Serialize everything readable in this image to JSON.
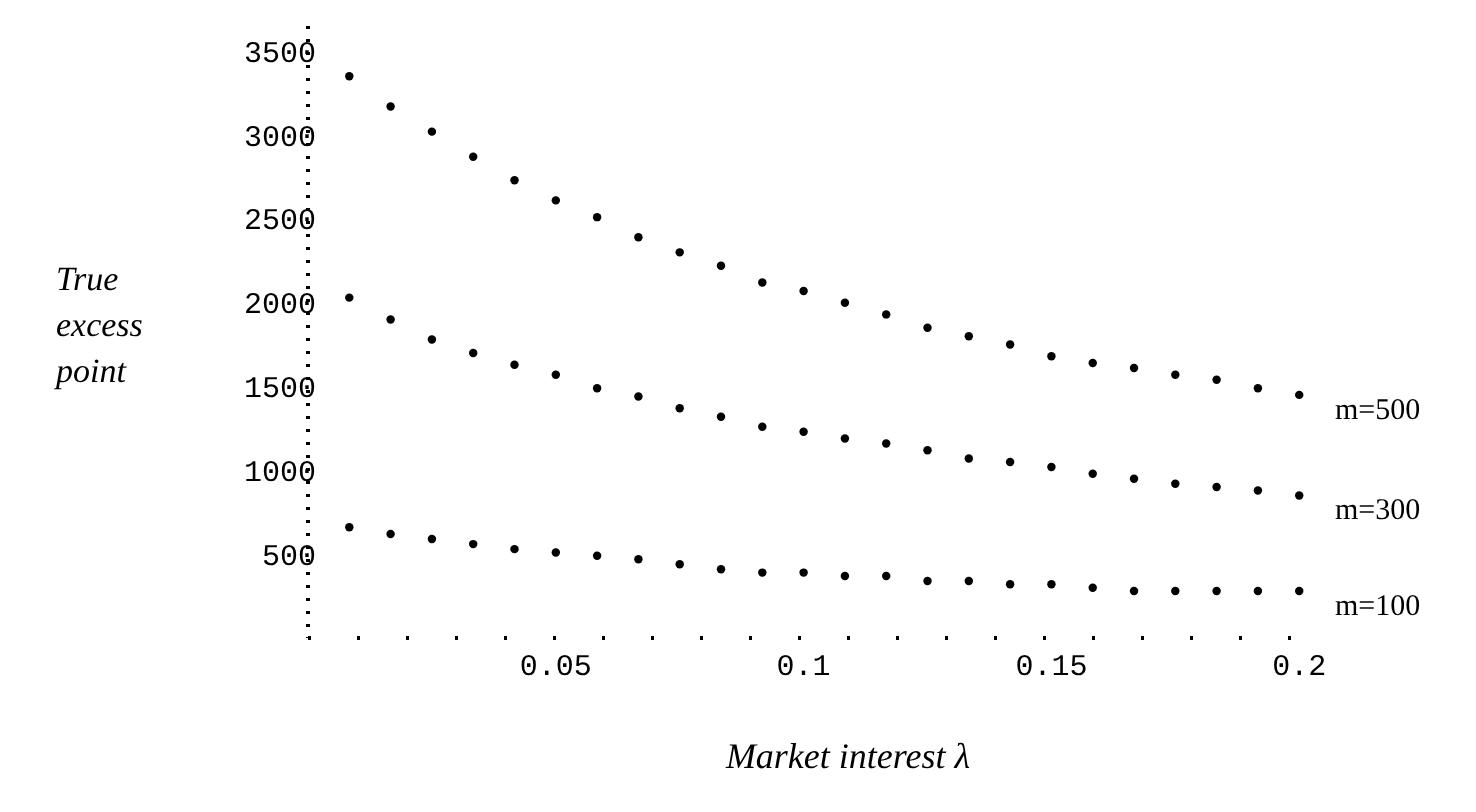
{
  "chart_data": {
    "type": "scatter",
    "xlabel": "Market interest λ",
    "ylabel": "True excess point",
    "x": [
      0.008333,
      0.016667,
      0.025,
      0.033333,
      0.041667,
      0.05,
      0.058333,
      0.066667,
      0.075,
      0.083333,
      0.091667,
      0.1,
      0.108333,
      0.116667,
      0.125,
      0.133333,
      0.141667,
      0.15,
      0.158333,
      0.166667,
      0.175,
      0.183333,
      0.191667,
      0.2
    ],
    "series": [
      {
        "name": "m=500",
        "color": "#000000",
        "values": [
          3350,
          3170,
          3020,
          2870,
          2730,
          2610,
          2510,
          2390,
          2300,
          2220,
          2120,
          2070,
          2000,
          1930,
          1850,
          1800,
          1750,
          1680,
          1640,
          1610,
          1570,
          1540,
          1490,
          1450
        ]
      },
      {
        "name": "m=300",
        "color": "#000000",
        "values": [
          2030,
          1900,
          1780,
          1700,
          1630,
          1570,
          1490,
          1440,
          1370,
          1320,
          1260,
          1230,
          1190,
          1160,
          1120,
          1070,
          1050,
          1020,
          980,
          950,
          920,
          900,
          880,
          850
        ]
      },
      {
        "name": "m=100",
        "color": "#000000",
        "values": [
          660,
          620,
          590,
          560,
          530,
          510,
          490,
          470,
          440,
          410,
          390,
          390,
          370,
          370,
          340,
          340,
          320,
          320,
          300,
          280,
          280,
          280,
          280,
          280
        ]
      }
    ],
    "xlim": [
      0,
      0.205
    ],
    "xticks": [
      0.05,
      0.1,
      0.15,
      0.2
    ],
    "ylim": [
      0,
      3650
    ],
    "yticks": [
      500,
      1000,
      1500,
      2000,
      2500,
      3000,
      3500
    ],
    "marker": "circle",
    "grid": false,
    "legend": false
  }
}
